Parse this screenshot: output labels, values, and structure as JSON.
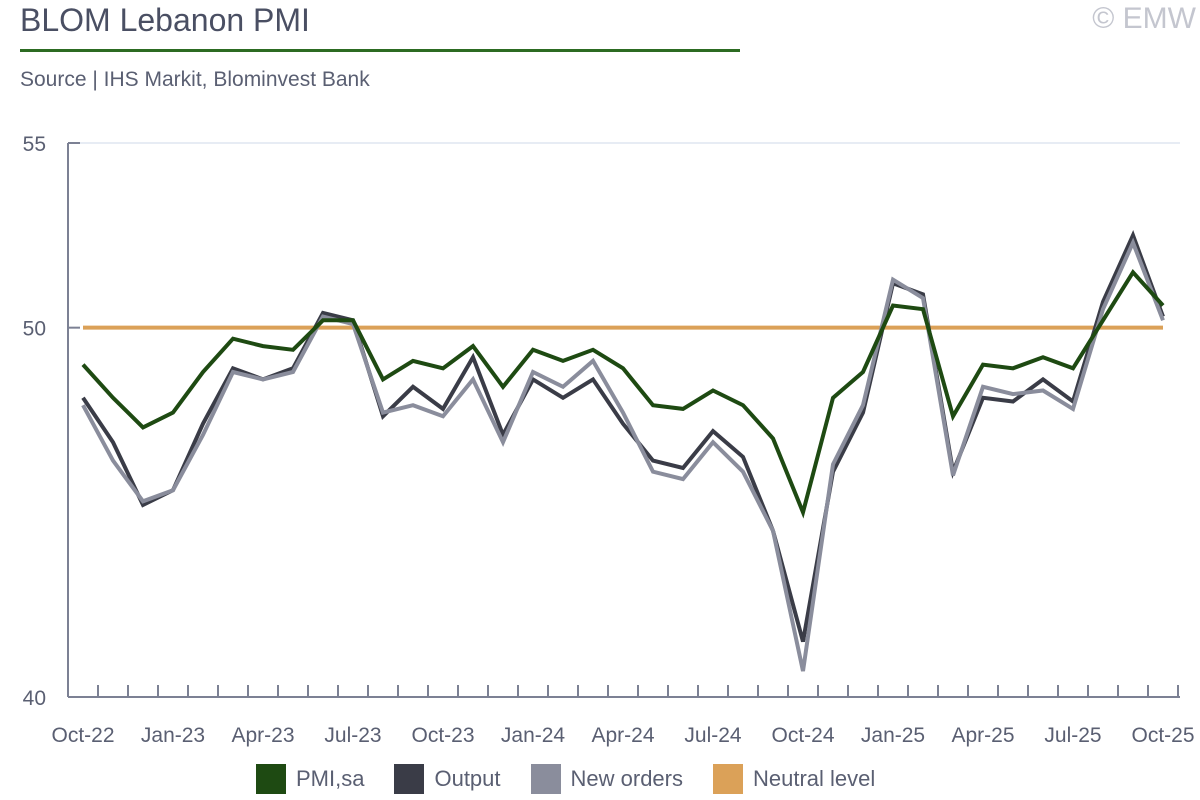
{
  "header": {
    "title": "BLOM Lebanon PMI",
    "copyright": "© EMW",
    "source": "Source | IHS Markit, Blominvest Bank"
  },
  "chart_data": {
    "type": "line",
    "title": "BLOM Lebanon PMI",
    "ylim": [
      40,
      55
    ],
    "yticks": [
      "40",
      "50",
      "55"
    ],
    "xtick_labels": [
      "Oct-22",
      "Jan-23",
      "Apr-23",
      "Jul-23",
      "Oct-23",
      "Jan-24",
      "Apr-24",
      "Jul-24",
      "Oct-24",
      "Jan-25",
      "Apr-25",
      "Jul-25",
      "Oct-25"
    ],
    "n_points": 37,
    "series": [
      {
        "name": "Output",
        "color": "#3a3c47",
        "values": [
          48.1,
          46.9,
          45.2,
          45.6,
          47.4,
          48.9,
          48.6,
          48.9,
          50.4,
          50.2,
          47.6,
          48.4,
          47.8,
          49.2,
          47.1,
          48.6,
          48.1,
          48.6,
          47.4,
          46.4,
          46.2,
          47.2,
          46.5,
          44.5,
          41.5,
          46.1,
          47.7,
          51.2,
          50.9,
          46.1,
          48.1,
          48.0,
          48.6,
          48.0,
          50.7,
          52.5,
          50.3
        ]
      },
      {
        "name": "New orders",
        "color": "#8a8d9c",
        "values": [
          47.9,
          46.4,
          45.3,
          45.6,
          47.1,
          48.8,
          48.6,
          48.8,
          50.3,
          50.1,
          47.7,
          47.9,
          47.6,
          48.6,
          46.9,
          48.8,
          48.4,
          49.1,
          47.7,
          46.1,
          45.9,
          46.9,
          46.1,
          44.5,
          40.7,
          46.3,
          47.9,
          51.3,
          50.8,
          46.0,
          48.4,
          48.2,
          48.3,
          47.8,
          50.5,
          52.3,
          50.2
        ]
      },
      {
        "name": "PMI,sa",
        "color": "#1e4a12",
        "values": [
          49.0,
          48.1,
          47.3,
          47.7,
          48.8,
          49.7,
          49.5,
          49.4,
          50.2,
          50.2,
          48.6,
          49.1,
          48.9,
          49.5,
          48.4,
          49.4,
          49.1,
          49.4,
          48.9,
          47.9,
          47.8,
          48.3,
          47.9,
          47.0,
          45.0,
          48.1,
          48.8,
          50.6,
          50.5,
          47.6,
          49.0,
          48.9,
          49.2,
          48.9,
          50.2,
          51.5,
          50.6
        ]
      }
    ],
    "reference_line": {
      "name": "Neutral level",
      "value": 50,
      "color": "#dba158"
    },
    "legend": [
      {
        "label": "PMI,sa",
        "color": "#1e4a12"
      },
      {
        "label": "Output",
        "color": "#3a3c47"
      },
      {
        "label": "New orders",
        "color": "#8a8d9c"
      },
      {
        "label": "Neutral level",
        "color": "#dba158"
      }
    ],
    "legend_position": "bottom"
  }
}
